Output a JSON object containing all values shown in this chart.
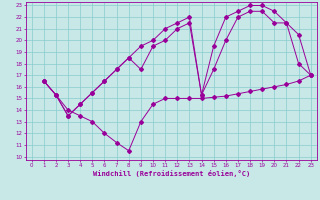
{
  "xlabel": "Windchill (Refroidissement éolien,°C)",
  "bg_color": "#c8e8e8",
  "line_color": "#990099",
  "grid_color": "#88cccc",
  "xlim_min": 0,
  "xlim_max": 23,
  "ylim_min": 10,
  "ylim_max": 23,
  "xticks": [
    0,
    1,
    2,
    3,
    4,
    5,
    6,
    7,
    8,
    9,
    10,
    11,
    12,
    13,
    14,
    15,
    16,
    17,
    18,
    19,
    20,
    21,
    22,
    23
  ],
  "yticks": [
    10,
    11,
    12,
    13,
    14,
    15,
    16,
    17,
    18,
    19,
    20,
    21,
    22,
    23
  ],
  "line1_x": [
    1,
    2,
    3,
    4,
    5,
    6,
    7,
    8,
    9,
    10,
    11,
    12,
    13,
    14,
    15,
    16,
    17,
    18,
    19,
    20,
    21,
    22,
    23
  ],
  "line1_y": [
    16.5,
    15.3,
    14.0,
    13.5,
    13.0,
    12.0,
    11.2,
    10.5,
    13.0,
    14.5,
    15.0,
    15.0,
    15.0,
    15.0,
    15.1,
    15.2,
    15.4,
    15.6,
    15.8,
    16.0,
    16.2,
    16.5,
    17.0
  ],
  "line2_x": [
    1,
    2,
    3,
    4,
    5,
    6,
    7,
    8,
    9,
    10,
    11,
    12,
    13,
    14,
    15,
    16,
    17,
    18,
    19,
    20,
    21,
    22,
    23
  ],
  "line2_y": [
    16.5,
    15.3,
    13.5,
    14.5,
    15.5,
    16.5,
    17.5,
    18.5,
    17.5,
    19.5,
    20.0,
    21.0,
    21.5,
    15.3,
    17.5,
    20.0,
    22.0,
    22.5,
    22.5,
    21.5,
    21.5,
    18.0,
    17.0
  ],
  "line3_x": [
    1,
    2,
    3,
    4,
    5,
    6,
    7,
    8,
    9,
    10,
    11,
    12,
    13,
    14,
    15,
    16,
    17,
    18,
    19,
    20,
    21,
    22,
    23
  ],
  "line3_y": [
    16.5,
    15.3,
    13.5,
    14.5,
    15.5,
    16.5,
    17.5,
    18.5,
    19.5,
    20.0,
    21.0,
    21.5,
    22.0,
    15.3,
    19.5,
    22.0,
    22.5,
    23.0,
    23.0,
    22.5,
    21.5,
    20.5,
    17.0
  ]
}
